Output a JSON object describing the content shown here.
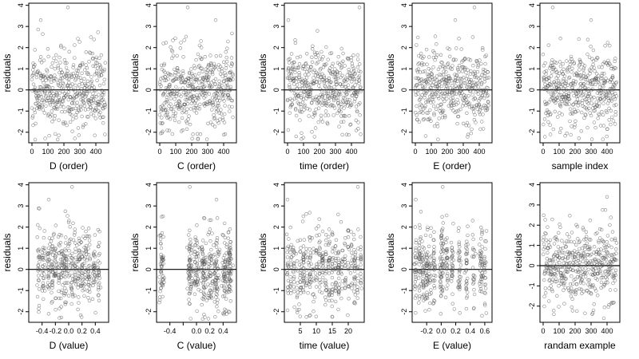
{
  "colors": {
    "points": "#555555",
    "axes": "#000000",
    "background": "#ffffff"
  },
  "chart_data": [
    {
      "type": "scatter",
      "xlabel": "D (order)",
      "ylabel": "residuals",
      "xlim": [
        -20,
        480
      ],
      "ylim": [
        -2.5,
        4.1
      ],
      "xticks": [
        0,
        100,
        200,
        300,
        400
      ],
      "xtick_labels": [
        "0",
        "100",
        "200",
        "300",
        "400"
      ],
      "yticks": [
        -2,
        -1,
        0,
        1,
        2,
        3,
        4
      ],
      "ytick_labels": [
        "-2",
        "-1",
        "0",
        "1",
        "2",
        "3",
        "4"
      ],
      "hline": 0,
      "distribution": "index",
      "seed": 11,
      "n": 460,
      "highlights": [
        [
          55,
          3.3
        ],
        [
          225,
          3.9
        ]
      ]
    },
    {
      "type": "scatter",
      "xlabel": "C (order)",
      "ylabel": "residuals",
      "xlim": [
        -20,
        480
      ],
      "ylim": [
        -2.5,
        4.1
      ],
      "xticks": [
        0,
        100,
        200,
        300,
        400
      ],
      "xtick_labels": [
        "0",
        "100",
        "200",
        "300",
        "400"
      ],
      "yticks": [
        -2,
        -1,
        0,
        1,
        2,
        3,
        4
      ],
      "ytick_labels": [
        "-2",
        "-1",
        "0",
        "1",
        "2",
        "3",
        "4"
      ],
      "hline": 0,
      "distribution": "index",
      "seed": 23,
      "n": 460,
      "highlights": [
        [
          175,
          3.9
        ],
        [
          350,
          3.3
        ]
      ]
    },
    {
      "type": "scatter",
      "xlabel": "time (order)",
      "ylabel": "residuals",
      "xlim": [
        -20,
        480
      ],
      "ylim": [
        -2.5,
        4.1
      ],
      "xticks": [
        0,
        100,
        200,
        300,
        400
      ],
      "xtick_labels": [
        "0",
        "100",
        "200",
        "300",
        "400"
      ],
      "yticks": [
        -2,
        -1,
        0,
        1,
        2,
        3,
        4
      ],
      "ytick_labels": [
        "-2",
        "-1",
        "0",
        "1",
        "2",
        "3",
        "4"
      ],
      "hline": 0,
      "distribution": "index",
      "seed": 37,
      "n": 460,
      "highlights": [
        [
          5,
          3.3
        ],
        [
          450,
          3.9
        ]
      ]
    },
    {
      "type": "scatter",
      "xlabel": "E (order)",
      "ylabel": "residuals",
      "xlim": [
        -20,
        480
      ],
      "ylim": [
        -2.5,
        4.1
      ],
      "xticks": [
        0,
        100,
        200,
        300,
        400
      ],
      "xtick_labels": [
        "0",
        "100",
        "200",
        "300",
        "400"
      ],
      "yticks": [
        -2,
        -1,
        0,
        1,
        2,
        3,
        4
      ],
      "ytick_labels": [
        "-2",
        "-1",
        "0",
        "1",
        "2",
        "3",
        "4"
      ],
      "hline": 0,
      "distribution": "index",
      "seed": 41,
      "n": 460,
      "highlights": [
        [
          250,
          3.3
        ],
        [
          370,
          3.9
        ]
      ]
    },
    {
      "type": "scatter",
      "xlabel": "sample index",
      "ylabel": "residuals",
      "xlim": [
        -20,
        480
      ],
      "ylim": [
        -2.5,
        4.1
      ],
      "xticks": [
        0,
        100,
        200,
        300,
        400
      ],
      "xtick_labels": [
        "0",
        "100",
        "200",
        "300",
        "400"
      ],
      "yticks": [
        -2,
        -1,
        0,
        1,
        2,
        3,
        4
      ],
      "ytick_labels": [
        "-2",
        "-1",
        "0",
        "1",
        "2",
        "3",
        "4"
      ],
      "hline": 0,
      "distribution": "index",
      "seed": 53,
      "n": 460,
      "highlights": [
        [
          60,
          3.9
        ],
        [
          300,
          3.3
        ]
      ]
    },
    {
      "type": "scatter",
      "xlabel": "D (value)",
      "ylabel": "residuals",
      "xlim": [
        -0.6,
        0.6
      ],
      "ylim": [
        -2.5,
        4.1
      ],
      "xticks": [
        -0.4,
        -0.2,
        0.0,
        0.2,
        0.4
      ],
      "xtick_labels": [
        "-0.4",
        "-0.2",
        "0.0",
        "0.2",
        "0.4"
      ],
      "yticks": [
        -2,
        -1,
        0,
        1,
        2,
        3,
        4
      ],
      "ytick_labels": [
        "-2",
        "-1",
        "0",
        "1",
        "2",
        "3",
        "4"
      ],
      "hline": 0,
      "distribution": "columns",
      "columns": [
        -0.45,
        -0.38,
        -0.3,
        -0.25,
        -0.2,
        -0.15,
        -0.1,
        -0.05,
        0.0,
        0.05,
        0.1,
        0.15,
        0.2,
        0.25,
        0.3,
        0.38,
        0.45
      ],
      "jitter": 0.012,
      "seed": 61,
      "n": 460,
      "highlights": [
        [
          0.05,
          3.9
        ],
        [
          -0.3,
          3.3
        ]
      ]
    },
    {
      "type": "scatter",
      "xlabel": "C (value)",
      "ylabel": "residuals",
      "xlim": [
        -0.6,
        0.6
      ],
      "ylim": [
        -2.5,
        4.1
      ],
      "xticks": [
        -0.4,
        -0.2,
        0.0,
        0.2,
        0.4
      ],
      "xtick_labels": [
        "-0.4",
        "",
        "0.0",
        "0.2",
        "0.4"
      ],
      "yticks": [
        -2,
        -1,
        0,
        1,
        2,
        3,
        4
      ],
      "ytick_labels": [
        "-2",
        "-1",
        "0",
        "1",
        "2",
        "3",
        "4"
      ],
      "hline": 0,
      "distribution": "columns",
      "columns": [
        -0.52,
        -0.1,
        0.0,
        0.1,
        0.2,
        0.3,
        0.42,
        0.5
      ],
      "jitter": 0.02,
      "seed": 73,
      "n": 460,
      "highlights": [
        [
          -0.1,
          3.9
        ],
        [
          0.3,
          3.3
        ]
      ]
    },
    {
      "type": "scatter",
      "xlabel": "time (value)",
      "ylabel": "residuals",
      "xlim": [
        0,
        25
      ],
      "ylim": [
        -2.5,
        4.1
      ],
      "xticks": [
        5,
        10,
        15,
        20
      ],
      "xtick_labels": [
        "5",
        "10",
        "15",
        "20"
      ],
      "yticks": [
        -2,
        -1,
        0,
        1,
        2,
        3,
        4
      ],
      "ytick_labels": [
        "-2",
        "-1",
        "0",
        "1",
        "2",
        "3",
        "4"
      ],
      "hline": 0,
      "distribution": "columns",
      "columns": [
        1,
        2,
        3,
        4,
        5,
        6,
        7,
        8,
        9,
        10,
        11,
        12,
        13,
        14,
        15,
        16,
        17,
        18,
        19,
        20,
        21,
        22,
        23,
        24
      ],
      "jitter": 0.15,
      "seed": 89,
      "n": 460,
      "highlights": [
        [
          1,
          3.3
        ],
        [
          23,
          3.9
        ]
      ]
    },
    {
      "type": "scatter",
      "xlabel": "E (value)",
      "ylabel": "residuals",
      "xlim": [
        -0.4,
        0.7
      ],
      "ylim": [
        -2.5,
        4.1
      ],
      "xticks": [
        -0.2,
        0.0,
        0.2,
        0.4,
        0.6
      ],
      "xtick_labels": [
        "-0.2",
        "0.0",
        "0.2",
        "0.4",
        "0.6"
      ],
      "yticks": [
        -2,
        -1,
        0,
        1,
        2,
        3,
        4
      ],
      "ytick_labels": [
        "-2",
        "-1",
        "0",
        "1",
        "2",
        "3",
        "4"
      ],
      "hline": 0,
      "distribution": "columns",
      "columns": [
        -0.35,
        -0.3,
        -0.25,
        -0.2,
        -0.15,
        -0.1,
        0.0,
        0.02,
        0.08,
        0.15,
        0.25,
        0.35,
        0.45,
        0.55,
        0.6
      ],
      "jitter": 0.01,
      "seed": 97,
      "n": 460,
      "highlights": [
        [
          0.02,
          3.9
        ],
        [
          -0.35,
          3.3
        ]
      ]
    },
    {
      "type": "scatter",
      "xlabel": "randam example",
      "ylabel": "residuals",
      "xlim": [
        -20,
        480
      ],
      "ylim": [
        -2.8,
        4.1
      ],
      "xticks": [
        0,
        100,
        200,
        300,
        400
      ],
      "xtick_labels": [
        "0",
        "100",
        "200",
        "300",
        "400"
      ],
      "yticks": [
        -2,
        -1,
        0,
        1,
        2,
        3,
        4
      ],
      "ytick_labels": [
        "-2",
        "-1",
        "0",
        "1",
        "2",
        "3",
        "4"
      ],
      "hline": 0,
      "distribution": "index",
      "seed": 101,
      "n": 460,
      "highlights": [
        [
          400,
          3.4
        ],
        [
          380,
          -2.6
        ]
      ]
    }
  ]
}
